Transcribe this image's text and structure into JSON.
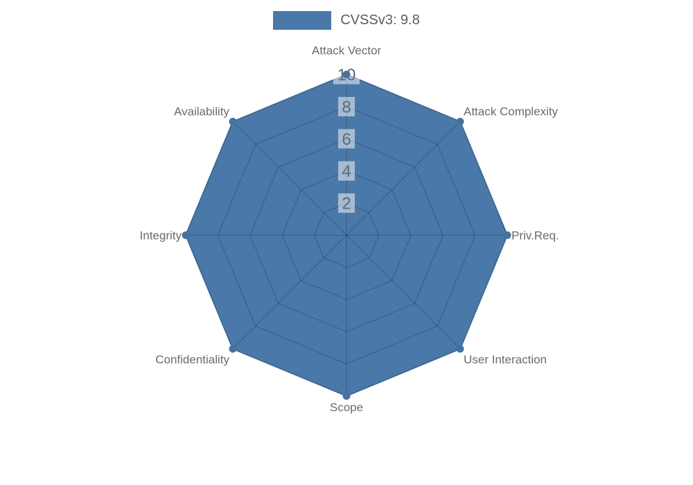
{
  "chart_data": {
    "type": "radar",
    "title": "",
    "legend_position": "top",
    "categories": [
      "Attack Vector",
      "Attack Complexity",
      "Priv.Req.",
      "User Interaction",
      "Scope",
      "Confidentiality",
      "Integrity",
      "Availability"
    ],
    "series": [
      {
        "name": "CVSSv3: 9.8",
        "values": [
          10,
          10,
          10,
          10,
          10,
          10,
          10,
          10
        ]
      }
    ],
    "max": 10,
    "ticks": [
      2,
      4,
      6,
      8,
      10
    ],
    "grid": "octagonal-web"
  },
  "colors": {
    "series_fill": "#4a79a9",
    "series_marker": "#44739f",
    "grid_line": "rgba(0,0,0,0.17)",
    "tick_backdrop": "rgba(255,255,255,0.5)",
    "tick_text": "#5f6a74",
    "axis_label": "#6a6a6a",
    "legend_text": "#5c5c5c",
    "background": "#ffffff"
  }
}
